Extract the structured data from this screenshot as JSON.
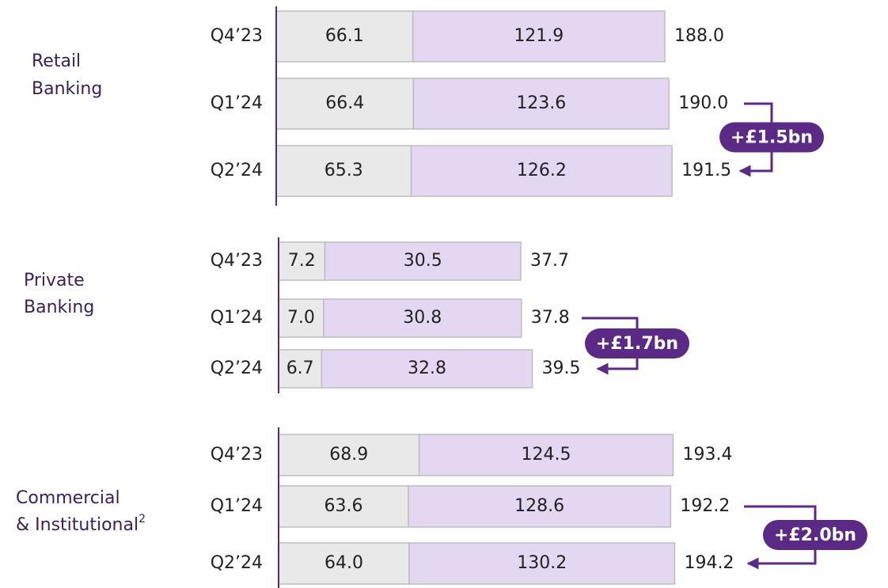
{
  "chart_data": [
    {
      "type": "stacked-bar-horizontal",
      "label": [
        "Retail",
        "Banking"
      ],
      "categories": [
        "Q4’23",
        "Q1’24",
        "Q2’24"
      ],
      "series": [
        {
          "color": "#e9e9e9",
          "values": [
            66.1,
            66.4,
            65.3
          ],
          "value_labels": [
            "66.1",
            "66.4",
            "65.3"
          ]
        },
        {
          "color": "#e3d7f1",
          "values": [
            121.9,
            123.6,
            126.2
          ],
          "value_labels": [
            "121.9",
            "123.6",
            "126.2"
          ]
        }
      ],
      "totals": [
        188,
        190,
        191.5
      ],
      "total_labels": [
        "188.0",
        "190.0",
        "191.5"
      ],
      "annotation": "+£1.5bn",
      "xlim": [
        0,
        188
      ]
    },
    {
      "type": "stacked-bar-horizontal",
      "label": [
        "Private",
        "Banking"
      ],
      "categories": [
        "Q4’23",
        "Q1’24",
        "Q2’24"
      ],
      "series": [
        {
          "color": "#e9e9e9",
          "values": [
            7.2,
            7,
            6.7
          ],
          "value_labels": [
            "7.2",
            "7.0",
            "6.7"
          ]
        },
        {
          "color": "#e3d7f1",
          "values": [
            30.5,
            30.8,
            32.8
          ],
          "value_labels": [
            "30.5",
            "30.8",
            "32.8"
          ]
        }
      ],
      "totals": [
        37.7,
        37.8,
        39.5
      ],
      "total_labels": [
        "37.7",
        "37.8",
        "39.5"
      ],
      "annotation": "+£1.7bn",
      "xlim": [
        0,
        60.5
      ]
    },
    {
      "type": "stacked-bar-horizontal",
      "label": [
        "Commercial",
        "& Institutional"
      ],
      "footnote": "2",
      "categories": [
        "Q4’23",
        "Q1’24",
        "Q2’24"
      ],
      "series": [
        {
          "color": "#e9e9e9",
          "values": [
            68.9,
            63.6,
            64
          ],
          "value_labels": [
            "68.9",
            "63.6",
            "64.0"
          ]
        },
        {
          "color": "#e3d7f1",
          "values": [
            124.5,
            128.6,
            130.2
          ],
          "value_labels": [
            "124.5",
            "128.6",
            "130.2"
          ]
        }
      ],
      "totals": [
        193.4,
        192.2,
        194.2
      ],
      "total_labels": [
        "193.4",
        "192.2",
        "194.2"
      ],
      "annotation": "+£2.0bn",
      "xlim": [
        0,
        190.5
      ]
    }
  ]
}
